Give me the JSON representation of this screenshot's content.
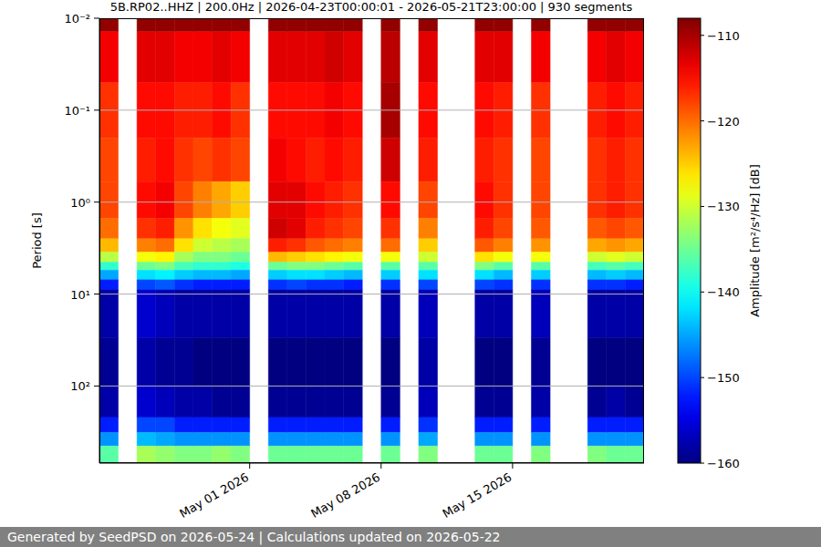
{
  "chart_data": {
    "type": "heatmap",
    "title": "5B.RP02..HHZ | 200.0Hz | 2026-04-23T00:00:01 - 2026-05-21T23:00:00 | 930 segments",
    "y_label": "Period [s]",
    "log": "y",
    "grid": true,
    "xlim": [
      "2026-04-23",
      "2026-05-22"
    ],
    "xticks": [
      {
        "value": "2026-05-01",
        "label": "May 01 2026"
      },
      {
        "value": "2026-05-08",
        "label": "May 08 2026"
      },
      {
        "value": "2026-05-15",
        "label": "May 15 2026"
      }
    ],
    "ylim": [
      0.01,
      690
    ],
    "yticks": [
      {
        "value": 0.01,
        "label": "10⁻²"
      },
      {
        "value": 0.1,
        "label": "10⁻¹"
      },
      {
        "value": 1,
        "label": "10⁰"
      },
      {
        "value": 10,
        "label": "10¹"
      },
      {
        "value": 100,
        "label": "10²"
      }
    ],
    "x_edges": [
      "2026-04-23",
      "2026-04-24",
      "2026-04-25",
      "2026-04-26",
      "2026-04-27",
      "2026-04-28",
      "2026-04-29",
      "2026-04-30",
      "2026-05-01",
      "2026-05-02",
      "2026-05-03",
      "2026-05-04",
      "2026-05-05",
      "2026-05-06",
      "2026-05-07",
      "2026-05-08",
      "2026-05-09",
      "2026-05-10",
      "2026-05-11",
      "2026-05-12",
      "2026-05-13",
      "2026-05-14",
      "2026-05-15",
      "2026-05-16",
      "2026-05-17",
      "2026-05-18",
      "2026-05-19",
      "2026-05-20",
      "2026-05-21",
      "2026-05-22"
    ],
    "y_edges": [
      0.01,
      0.014,
      0.05,
      0.2,
      0.6,
      1.5,
      2.5,
      3.5,
      4.5,
      5.5,
      7,
      9,
      30,
      100,
      220,
      320,
      450,
      690
    ],
    "cells": [
      [
        -109,
        -114,
        -117,
        -118,
        -118,
        -120,
        -124,
        -131,
        -138,
        -145,
        -152,
        -158,
        -159,
        -158,
        -152,
        -146,
        -136
      ],
      null,
      [
        -109,
        -113,
        -115,
        -116,
        -115,
        -117,
        -121,
        -128,
        -135,
        -142,
        -150,
        -156,
        -158,
        -156,
        -150,
        -144,
        -132
      ],
      [
        -109,
        -113,
        -115,
        -115,
        -114,
        -116,
        -120,
        -127,
        -134,
        -141,
        -149,
        -157,
        -159,
        -157,
        -150,
        -145,
        -133
      ],
      [
        -109,
        -114,
        -116,
        -117,
        -118,
        -122,
        -126,
        -132,
        -137,
        -143,
        -151,
        -158,
        -159,
        -158,
        -152,
        -146,
        -134
      ],
      [
        -109,
        -114,
        -116,
        -118,
        -121,
        -126,
        -130,
        -134,
        -138,
        -144,
        -152,
        -158,
        -160,
        -158,
        -152,
        -146,
        -134
      ],
      [
        -109,
        -113,
        -115,
        -117,
        -123,
        -128,
        -131,
        -134,
        -138,
        -144,
        -152,
        -158,
        -160,
        -159,
        -152,
        -146,
        -133
      ],
      [
        -109,
        -114,
        -117,
        -118,
        -125,
        -129,
        -132,
        -135,
        -139,
        -145,
        -152,
        -158,
        -160,
        -159,
        -152,
        -146,
        -134
      ],
      null,
      [
        -109,
        -113,
        -115,
        -114,
        -113,
        -112,
        -116,
        -124,
        -135,
        -143,
        -151,
        -158,
        -160,
        -159,
        -152,
        -146,
        -135
      ],
      [
        -109,
        -113,
        -115,
        -115,
        -113,
        -113,
        -117,
        -125,
        -134,
        -142,
        -150,
        -158,
        -160,
        -159,
        -152,
        -146,
        -135
      ],
      [
        -109,
        -113,
        -115,
        -116,
        -115,
        -116,
        -119,
        -126,
        -134,
        -142,
        -151,
        -158,
        -160,
        -159,
        -152,
        -146,
        -135
      ],
      [
        -109,
        -112,
        -114,
        -115,
        -116,
        -117,
        -120,
        -127,
        -135,
        -143,
        -151,
        -158,
        -160,
        -159,
        -152,
        -146,
        -135
      ],
      [
        -109,
        -113,
        -115,
        -116,
        -117,
        -118,
        -121,
        -128,
        -136,
        -144,
        -152,
        -158,
        -160,
        -159,
        -152,
        -146,
        -135
      ],
      null,
      [
        -109,
        -111,
        -110,
        -112,
        -115,
        -117,
        -120,
        -128,
        -136,
        -143,
        -151,
        -158,
        -160,
        -159,
        -152,
        -146,
        -135
      ],
      null,
      [
        -109,
        -113,
        -115,
        -116,
        -118,
        -121,
        -125,
        -130,
        -136,
        -142,
        -150,
        -157,
        -158,
        -157,
        -151,
        -145,
        -134
      ],
      null,
      null,
      [
        -109,
        -113,
        -115,
        -116,
        -115,
        -116,
        -119,
        -126,
        -134,
        -142,
        -150,
        -158,
        -160,
        -159,
        -152,
        -146,
        -135
      ],
      [
        -109,
        -113,
        -116,
        -117,
        -117,
        -118,
        -121,
        -128,
        -136,
        -144,
        -151,
        -158,
        -160,
        -159,
        -152,
        -146,
        -135
      ],
      null,
      [
        -109,
        -114,
        -117,
        -118,
        -118,
        -119,
        -122,
        -128,
        -136,
        -143,
        -151,
        -157,
        -159,
        -158,
        -152,
        -146,
        -134
      ],
      null,
      null,
      [
        -109,
        -114,
        -116,
        -117,
        -117,
        -119,
        -123,
        -130,
        -137,
        -144,
        -151,
        -158,
        -160,
        -159,
        -152,
        -146,
        -134
      ],
      [
        -109,
        -113,
        -115,
        -116,
        -116,
        -118,
        -122,
        -129,
        -136,
        -143,
        -151,
        -158,
        -160,
        -158,
        -152,
        -146,
        -135
      ],
      [
        -109,
        -114,
        -116,
        -117,
        -117,
        -119,
        -123,
        -130,
        -137,
        -144,
        -152,
        -158,
        -160,
        -159,
        -152,
        -146,
        -135
      ]
    ],
    "colorbar": {
      "label": "Amplitude [m²/s⁴/Hz] [dB]",
      "clim": [
        -160,
        -108
      ],
      "ticks": [
        {
          "value": -110,
          "label": "−110"
        },
        {
          "value": -120,
          "label": "−120"
        },
        {
          "value": -130,
          "label": "−130"
        },
        {
          "value": -140,
          "label": "−140"
        },
        {
          "value": -150,
          "label": "−150"
        },
        {
          "value": -160,
          "label": "−160"
        }
      ]
    },
    "footer": "Generated by SeedPSD on 2026-05-24 | Calculations updated on 2026-05-22"
  }
}
